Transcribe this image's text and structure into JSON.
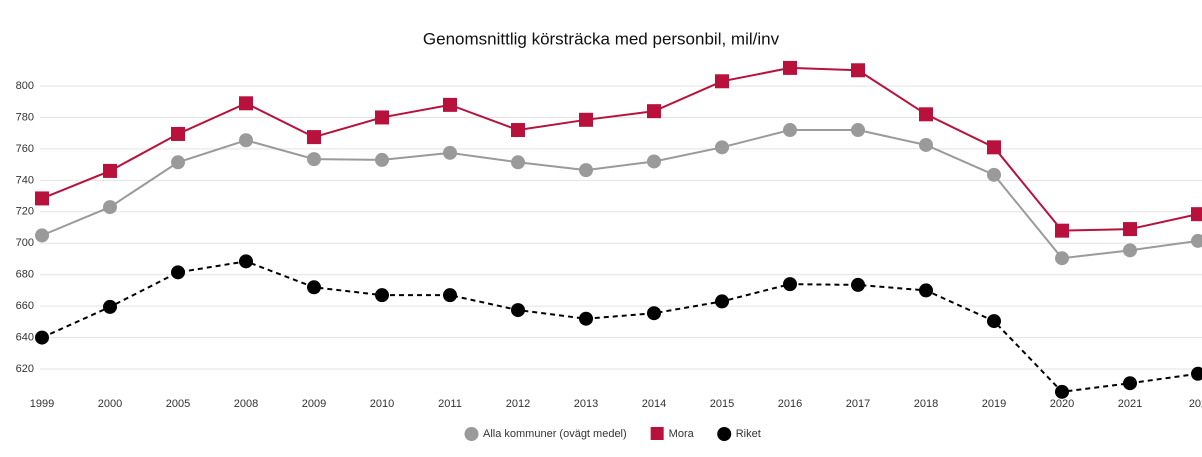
{
  "chart_data": {
    "type": "line",
    "title": "Genomsnittlig körsträcka med personbil, mil/inv",
    "categories": [
      "1999",
      "2000",
      "2005",
      "2008",
      "2009",
      "2010",
      "2011",
      "2012",
      "2013",
      "2014",
      "2015",
      "2016",
      "2017",
      "2018",
      "2019",
      "2020",
      "2021",
      "202"
    ],
    "series": [
      {
        "name": "Alla kommuner (ovägt medel)",
        "color": "#9a9a9a",
        "marker": "circle",
        "line_style": "solid",
        "values": [
          705,
          723,
          751.5,
          765.5,
          753.5,
          753,
          757.5,
          751.5,
          746.5,
          752,
          761,
          772,
          772,
          762.5,
          743.5,
          690.5,
          695.5,
          701.5
        ]
      },
      {
        "name": "Mora",
        "color": "#b8123c",
        "marker": "square",
        "line_style": "solid",
        "values": [
          728.5,
          746,
          769.5,
          789,
          767.5,
          780,
          788,
          772,
          778.5,
          784,
          803,
          811.5,
          810,
          782,
          761,
          708,
          709,
          718.5
        ]
      },
      {
        "name": "Riket",
        "color": "#000000",
        "marker": "circle",
        "line_style": "dashed",
        "values": [
          640,
          659.5,
          681.5,
          688.5,
          672,
          667,
          667,
          657.5,
          652,
          655.5,
          663,
          674,
          673.5,
          670,
          650.5,
          605.5,
          611,
          617
        ]
      }
    ],
    "ylim": [
      600,
      800
    ],
    "yticks": [
      620,
      640,
      660,
      680,
      700,
      720,
      740,
      760,
      780,
      800
    ],
    "grid": true,
    "legend": "bottom"
  }
}
